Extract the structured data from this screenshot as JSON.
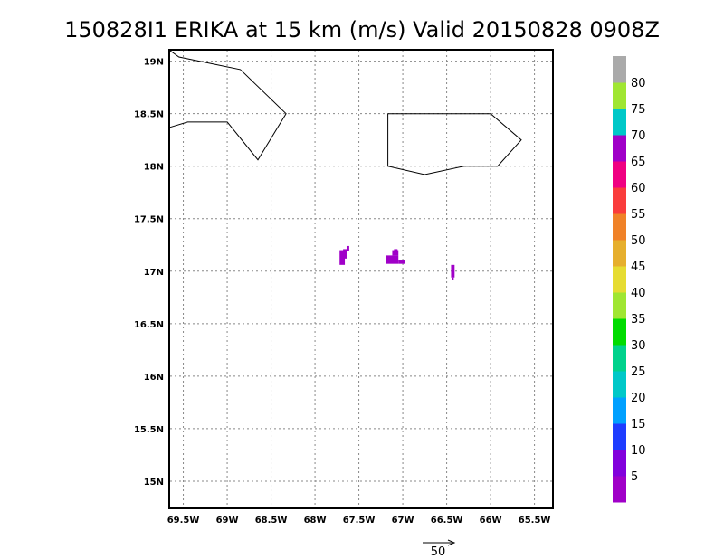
{
  "title": "150828I1 ERIKA at 15 km (m/s) Valid 20150828 0908Z",
  "map": {
    "lon_range": [
      -69.65,
      -65.3
    ],
    "lat_range": [
      14.75,
      19.1
    ],
    "x_ticks": [
      {
        "lon": -69.5,
        "label": "69.5W"
      },
      {
        "lon": -69.0,
        "label": "69W"
      },
      {
        "lon": -68.5,
        "label": "68.5W"
      },
      {
        "lon": -68.0,
        "label": "68W"
      },
      {
        "lon": -67.5,
        "label": "67.5W"
      },
      {
        "lon": -67.0,
        "label": "67W"
      },
      {
        "lon": -66.5,
        "label": "66.5W"
      },
      {
        "lon": -66.0,
        "label": "66W"
      },
      {
        "lon": -65.5,
        "label": "65.5W"
      }
    ],
    "y_ticks": [
      {
        "lat": 19.0,
        "label": "19N"
      },
      {
        "lat": 18.5,
        "label": "18.5N"
      },
      {
        "lat": 18.0,
        "label": "18N"
      },
      {
        "lat": 17.5,
        "label": "17.5N"
      },
      {
        "lat": 17.0,
        "label": "17N"
      },
      {
        "lat": 16.5,
        "label": "16.5N"
      },
      {
        "lat": 16.0,
        "label": "16N"
      },
      {
        "lat": 15.5,
        "label": "15.5N"
      },
      {
        "lat": 15.0,
        "label": "15N"
      }
    ],
    "grid": "dotted",
    "coastlines": [
      [
        [
          -69.65,
          19.1
        ],
        [
          -69.55,
          19.04
        ],
        [
          -68.85,
          18.92
        ],
        [
          -68.33,
          18.5
        ],
        [
          -68.65,
          18.06
        ],
        [
          -69.0,
          18.42
        ],
        [
          -69.45,
          18.42
        ],
        [
          -69.65,
          18.37
        ]
      ],
      [
        [
          -67.17,
          18.5
        ],
        [
          -66.0,
          18.5
        ],
        [
          -65.65,
          18.25
        ],
        [
          -65.92,
          18.0
        ],
        [
          -66.3,
          18.0
        ],
        [
          -66.75,
          17.92
        ],
        [
          -67.17,
          18.0
        ],
        [
          -67.17,
          18.5
        ]
      ]
    ],
    "wind_cells": [
      {
        "lon": -67.72,
        "lat": 17.06,
        "w": 0.06,
        "h": 0.14,
        "speed": 4
      },
      {
        "lon": -67.68,
        "lat": 17.12,
        "w": 0.04,
        "h": 0.09,
        "speed": 4
      },
      {
        "lon": -67.64,
        "lat": 17.19,
        "w": 0.03,
        "h": 0.05,
        "speed": 2
      },
      {
        "lon": -67.19,
        "lat": 17.07,
        "w": 0.14,
        "h": 0.08,
        "speed": 4
      },
      {
        "lon": -67.12,
        "lat": 17.15,
        "w": 0.07,
        "h": 0.05,
        "speed": 4
      },
      {
        "lon": -67.05,
        "lat": 17.07,
        "w": 0.08,
        "h": 0.04,
        "speed": 4
      },
      {
        "lon": -67.1,
        "lat": 17.19,
        "w": 0.04,
        "h": 0.02,
        "speed": 1
      },
      {
        "lon": -66.45,
        "lat": 16.94,
        "w": 0.04,
        "h": 0.12,
        "speed": 4
      },
      {
        "lon": -66.44,
        "lat": 16.92,
        "w": 0.02,
        "h": 0.02,
        "speed": 1
      }
    ]
  },
  "colorbar": {
    "min": 0,
    "max": 85,
    "labels": [
      "5",
      "10",
      "15",
      "20",
      "25",
      "30",
      "35",
      "40",
      "45",
      "50",
      "55",
      "60",
      "65",
      "70",
      "75",
      "80"
    ],
    "label_values": [
      5,
      10,
      15,
      20,
      25,
      30,
      35,
      40,
      45,
      50,
      55,
      60,
      65,
      70,
      75,
      80
    ],
    "colors": [
      "#a000c8",
      "#8200dc",
      "#1e3cff",
      "#00a0ff",
      "#00c8c8",
      "#00d28c",
      "#00dc00",
      "#a0e632",
      "#e6dc32",
      "#e6af2d",
      "#f08228",
      "#fa3c3c",
      "#f00082",
      "#a000c8",
      "#00c8c8",
      "#a0e632",
      "#aaaaaa"
    ]
  },
  "vector_legend": {
    "label": "50"
  }
}
